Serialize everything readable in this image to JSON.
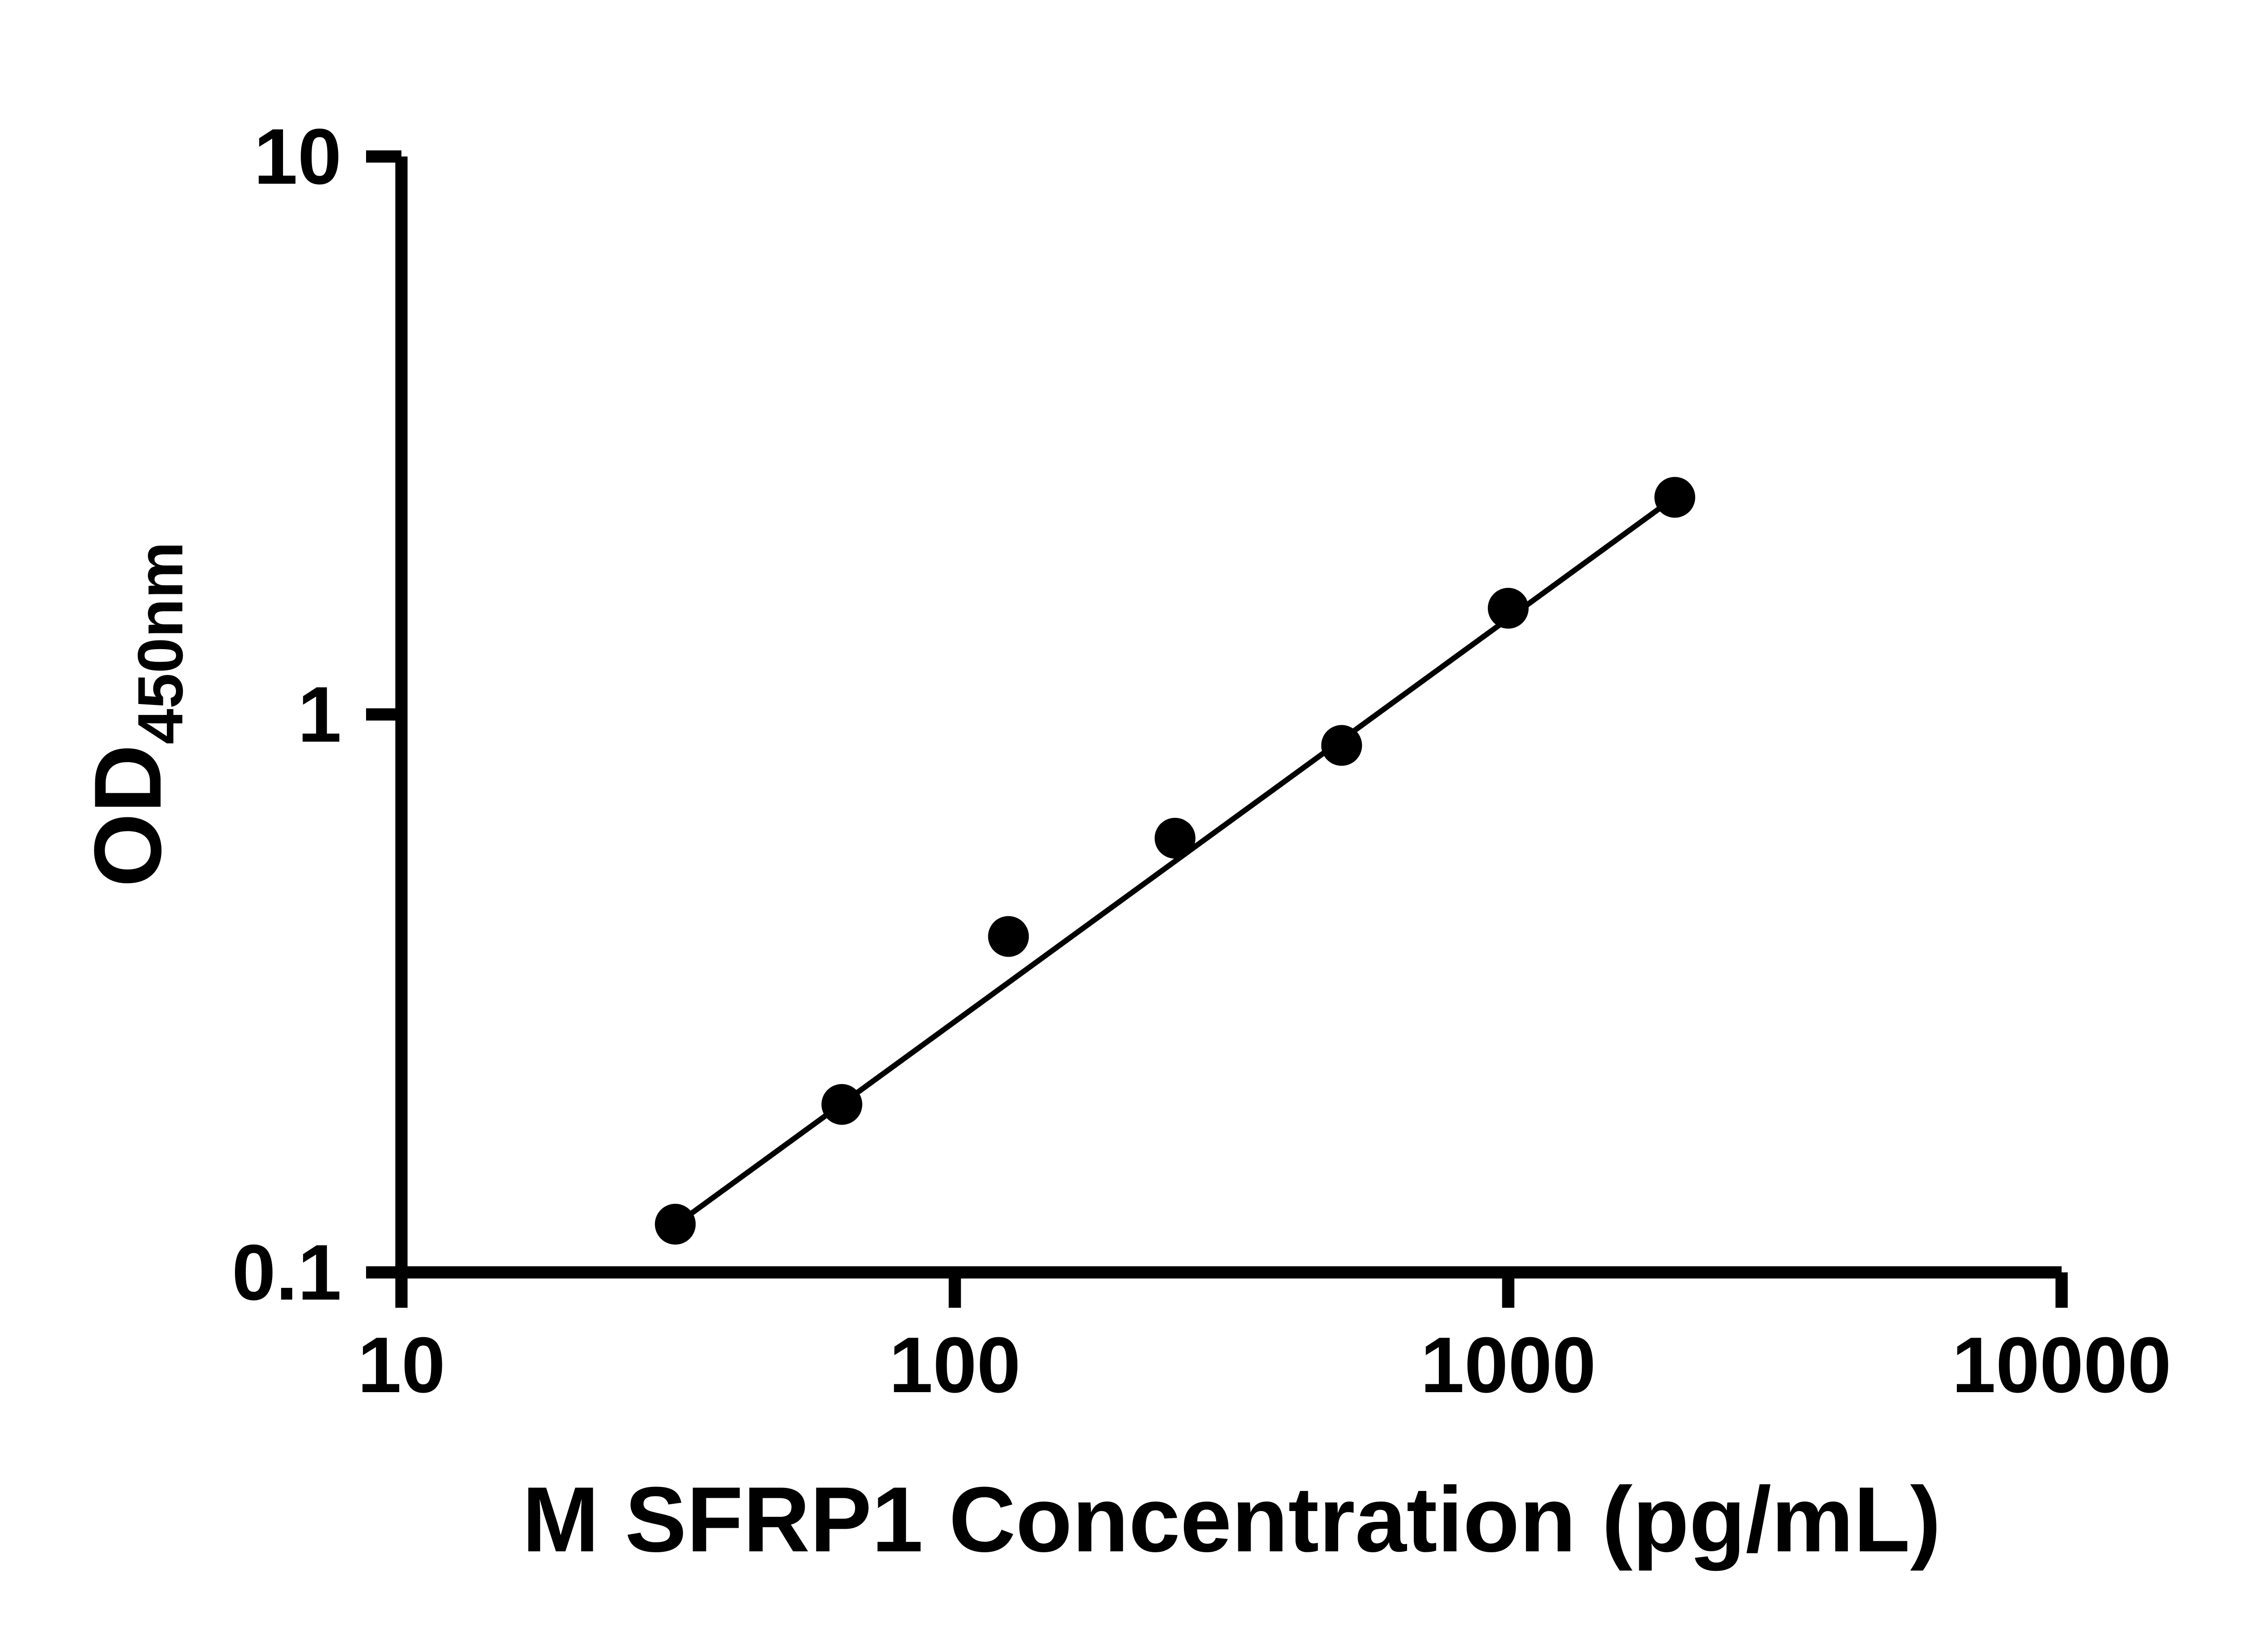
{
  "page": {
    "background": "#ffffff"
  },
  "style": {
    "axis_color": "#000000",
    "marker_color": "#000000",
    "line_color": "#000000",
    "axis_stroke_width": 9,
    "tick_length": 26,
    "trend_stroke_width": 4,
    "marker_radius": 15
  },
  "chart_data": {
    "type": "scatter",
    "title": "",
    "xlabel": "M SFRP1 Concentration (pg/mL)",
    "ylabel_main": "OD",
    "ylabel_sub": "450nm",
    "x_scale": "log",
    "y_scale": "log",
    "xlim": [
      10,
      10000
    ],
    "ylim": [
      0.1,
      10
    ],
    "grid": false,
    "legend": "none",
    "x_ticks": [
      {
        "value": 10,
        "label": "10"
      },
      {
        "value": 100,
        "label": "100"
      },
      {
        "value": 1000,
        "label": "1000"
      },
      {
        "value": 10000,
        "label": "10000"
      }
    ],
    "y_ticks": [
      {
        "value": 10,
        "label": "10"
      },
      {
        "value": 1,
        "label": "1"
      },
      {
        "value": 0.1,
        "label": "0.1"
      }
    ],
    "series": [
      {
        "name": "standard-curve-points",
        "marker": "circle",
        "points": [
          {
            "x": 31.25,
            "y": 0.122
          },
          {
            "x": 62.5,
            "y": 0.2
          },
          {
            "x": 125,
            "y": 0.4
          },
          {
            "x": 250,
            "y": 0.6
          },
          {
            "x": 500,
            "y": 0.88
          },
          {
            "x": 1000,
            "y": 1.55
          },
          {
            "x": 2000,
            "y": 2.45
          }
        ]
      }
    ],
    "trend_line": {
      "x1": 30,
      "y1": 0.118,
      "x2": 2000,
      "y2": 2.45
    }
  }
}
